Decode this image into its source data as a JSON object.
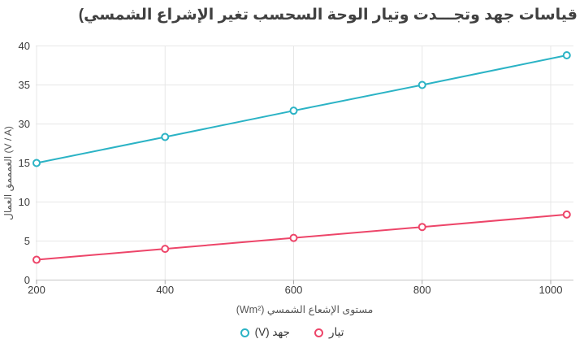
{
  "title": "قياسات جهد وتجـــدت وتيار الوحة السحسب تغير الإشراع الشمسي)",
  "colors": {
    "voltage_series": "#2bb3c5",
    "current_series": "#ed4569",
    "gridline": "#e7e7e7",
    "axis_line": "#c4c4c4",
    "tick_mark": "#aaaaaa",
    "title_text": "#404040",
    "tick_text": "#3b3b3b",
    "axis_name_text": "#555555"
  },
  "x_axis": {
    "title": "مستوى الإشعاع الشمسي (Wm²)",
    "ticks": [
      "200",
      "400",
      "600",
      "800",
      "1000"
    ]
  },
  "y_axis": {
    "title": "(V / A) الغمممق العمال",
    "ticks": [
      "0",
      "5",
      "10",
      "15",
      "30",
      "35",
      "40"
    ]
  },
  "legend": {
    "items": [
      {
        "id": "current",
        "label": "تيار",
        "color": "#ed4569"
      },
      {
        "id": "voltage",
        "label": "جهد (V)",
        "color": "#2bb3c5"
      }
    ]
  },
  "chart_data": {
    "type": "line",
    "title": "قياسات جهد وتجـــدت وتيار الوحة السحسب تغير الإشراع الشمسي)",
    "xlabel": "مستوى الإشعاع الشمسي (Wm²)",
    "ylabel": "(V / A) الغمممق العمال",
    "x": [
      200,
      400,
      600,
      800,
      1025
    ],
    "series": [
      {
        "id": "voltage",
        "name": "جهد (V)",
        "color": "#2bb3c5",
        "marker": "empty-circle",
        "values": [
          15,
          25,
          31.7,
          35,
          38.8
        ]
      },
      {
        "id": "current",
        "name": "تيار",
        "color": "#ed4569",
        "marker": "empty-circle",
        "values": [
          2.6,
          4.0,
          5.4,
          6.8,
          8.4
        ]
      }
    ],
    "x_ticks": [
      200,
      400,
      600,
      800,
      1000
    ],
    "y_ticks_as_displayed": [
      0,
      5,
      10,
      15,
      30,
      35,
      40
    ],
    "y_axis_note": "tick labels are evenly spaced as displayed; scale jumps from 15 to 30 (non-linear as rendered)",
    "grid": true,
    "legend_position": "bottom"
  }
}
